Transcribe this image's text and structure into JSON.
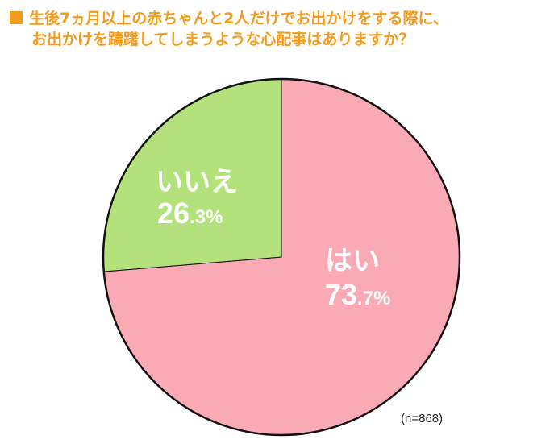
{
  "title": {
    "line1": "生後7ヵ月以上の赤ちゃんと2人だけでお出かけをする際に、",
    "line2": "お出かけを躊躇してしまうような心配事はありますか？"
  },
  "sample_note": "(n=868)",
  "colors": {
    "title": "#f29b1d",
    "slice_yes": "#f9aab5",
    "slice_no": "#b3e27d",
    "outline": "#111111",
    "label": "#ffffff"
  },
  "chart_data": {
    "type": "pie",
    "title": "生後7ヵ月以上の赤ちゃんと2人だけでお出かけをする際に、お出かけを躊躇してしまうような心配事はありますか？",
    "categories": [
      "はい",
      "いいえ"
    ],
    "values": [
      73.7,
      26.3
    ],
    "unit": "%",
    "labels": [
      {
        "name": "はい",
        "value_text": "73.7%"
      },
      {
        "name": "いいえ",
        "value_text": "26.3%"
      }
    ],
    "start_angle": "12 o'clock",
    "direction": "clockwise",
    "legend": "none (labels inside slices)"
  }
}
